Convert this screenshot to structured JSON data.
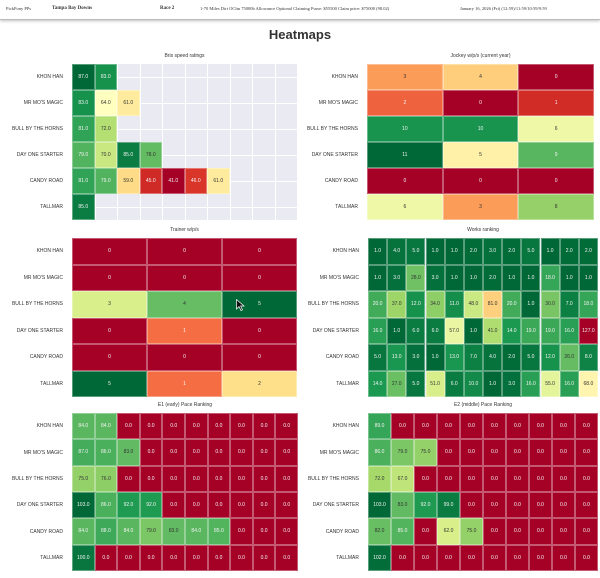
{
  "header": {
    "app": "PickPony PPs",
    "track": "Tampa Bay Downs",
    "race": "Race 2",
    "conditions": "1-70 Miles Dirt OClm 75000b Allowance Optional Claiming Purse: $55500 Claim price: $75000 (98.02)",
    "date": "January 16, 2026 (Fri) (12:59)/11:59/10:59/9:59"
  },
  "page_title": "Heatmaps",
  "chart_data": [
    {
      "type": "heatmap",
      "title": "Bris speed ratings",
      "cmap": "RdYlGn",
      "reversed": false,
      "decimals": 1,
      "columns": 10,
      "rows": [
        "KHON HAN",
        "MR MO'S MAGIC",
        "BULL BY THE HORNS",
        "DAY ONE STARTER",
        "CANDY ROAD",
        "TALLMAR"
      ],
      "values": [
        [
          87,
          83
        ],
        [
          83,
          64,
          61
        ],
        [
          81,
          72
        ],
        [
          79,
          70,
          85,
          78
        ],
        [
          81,
          79,
          59,
          45,
          41,
          46,
          61
        ],
        [
          85
        ]
      ]
    },
    {
      "type": "heatmap",
      "title": "Jockey w/p/s (current year)",
      "cmap": "RdYlGn",
      "reversed": false,
      "decimals": 0,
      "columns": 3,
      "rows": [
        "KHON HAN",
        "MR MO'S MAGIC",
        "BULL BY THE HORNS",
        "DAY ONE STARTER",
        "CANDY ROAD",
        "TALLMAR"
      ],
      "values": [
        [
          3,
          4,
          0
        ],
        [
          2,
          0,
          1
        ],
        [
          10,
          10,
          6
        ],
        [
          11,
          5,
          9
        ],
        [
          0,
          0,
          0
        ],
        [
          6,
          3,
          8
        ]
      ]
    },
    {
      "type": "heatmap",
      "title": "Trainer w/p/s",
      "cmap": "RdYlGn",
      "reversed": false,
      "decimals": 0,
      "columns": 3,
      "rows": [
        "KHON HAN",
        "MR MO'S MAGIC",
        "BULL BY THE HORNS",
        "DAY ONE STARTER",
        "CANDY ROAD",
        "TALLMAR"
      ],
      "values": [
        [
          0,
          0,
          0
        ],
        [
          0,
          0,
          0
        ],
        [
          3,
          4,
          5
        ],
        [
          0,
          1,
          0
        ],
        [
          0,
          0,
          0
        ],
        [
          5,
          1,
          2
        ]
      ]
    },
    {
      "type": "heatmap",
      "title": "Works ranking",
      "cmap": "RdYlGn",
      "reversed": true,
      "decimals": 1,
      "columns": 12,
      "rows": [
        "KHON HAN",
        "MR MO'S MAGIC",
        "BULL BY THE HORNS",
        "DAY ONE STARTER",
        "CANDY ROAD",
        "TALLMAR"
      ],
      "values": [
        [
          1,
          4,
          5,
          1,
          1,
          2,
          3,
          2,
          5,
          1,
          2,
          2
        ],
        [
          1,
          3,
          28,
          3,
          1,
          1,
          2,
          1,
          1,
          18,
          1,
          1
        ],
        [
          20,
          37,
          12,
          34,
          11,
          48,
          81,
          20,
          1,
          30,
          7,
          18
        ],
        [
          16,
          1,
          6,
          6,
          57,
          1,
          41,
          14,
          19,
          19,
          16,
          127
        ],
        [
          5,
          13,
          3,
          1,
          13,
          7,
          4,
          2,
          5,
          12,
          26,
          8
        ],
        [
          14,
          27,
          5,
          51,
          6,
          10,
          1,
          3,
          16,
          55,
          16,
          68
        ]
      ]
    },
    {
      "type": "heatmap",
      "title": "E1 (early) Pace Ranking",
      "cmap": "RdYlGn",
      "reversed": false,
      "decimals": 1,
      "columns": 10,
      "rows": [
        "KHON HAN",
        "MR MO'S MAGIC",
        "BULL BY THE HORNS",
        "DAY ONE STARTER",
        "CANDY ROAD",
        "TALLMAR"
      ],
      "values": [
        [
          84,
          84,
          0,
          0,
          0,
          0,
          0,
          0,
          0,
          0
        ],
        [
          87,
          86,
          83,
          0,
          0,
          0,
          0,
          0,
          0,
          0
        ],
        [
          75,
          76,
          0,
          0,
          0,
          0,
          0,
          0,
          0,
          0
        ],
        [
          103,
          86,
          92,
          92,
          0,
          0,
          0,
          0,
          0,
          0
        ],
        [
          84,
          88,
          84,
          79,
          83,
          84,
          85,
          0,
          0,
          0
        ],
        [
          100,
          0,
          0,
          0,
          0,
          0,
          0,
          0,
          0,
          0
        ]
      ]
    },
    {
      "type": "heatmap",
      "title": "E2 (middle) Pace Ranking",
      "cmap": "RdYlGn",
      "reversed": false,
      "decimals": 1,
      "columns": 10,
      "rows": [
        "KHON HAN",
        "MR MO'S MAGIC",
        "BULL BY THE HORNS",
        "DAY ONE STARTER",
        "CANDY ROAD",
        "TALLMAR"
      ],
      "values": [
        [
          89,
          0,
          0,
          0,
          0,
          0,
          0,
          0,
          0,
          0
        ],
        [
          86,
          79,
          75,
          0,
          0,
          0,
          0,
          0,
          0,
          0
        ],
        [
          72,
          67,
          0,
          0,
          0,
          0,
          0,
          0,
          0,
          0
        ],
        [
          103,
          83,
          92,
          99,
          0,
          0,
          0,
          0,
          0,
          0
        ],
        [
          82,
          85,
          0,
          62,
          75,
          0,
          0,
          0,
          0,
          0
        ],
        [
          102,
          0,
          0,
          0,
          0,
          0,
          0,
          0,
          0,
          0
        ]
      ]
    }
  ]
}
